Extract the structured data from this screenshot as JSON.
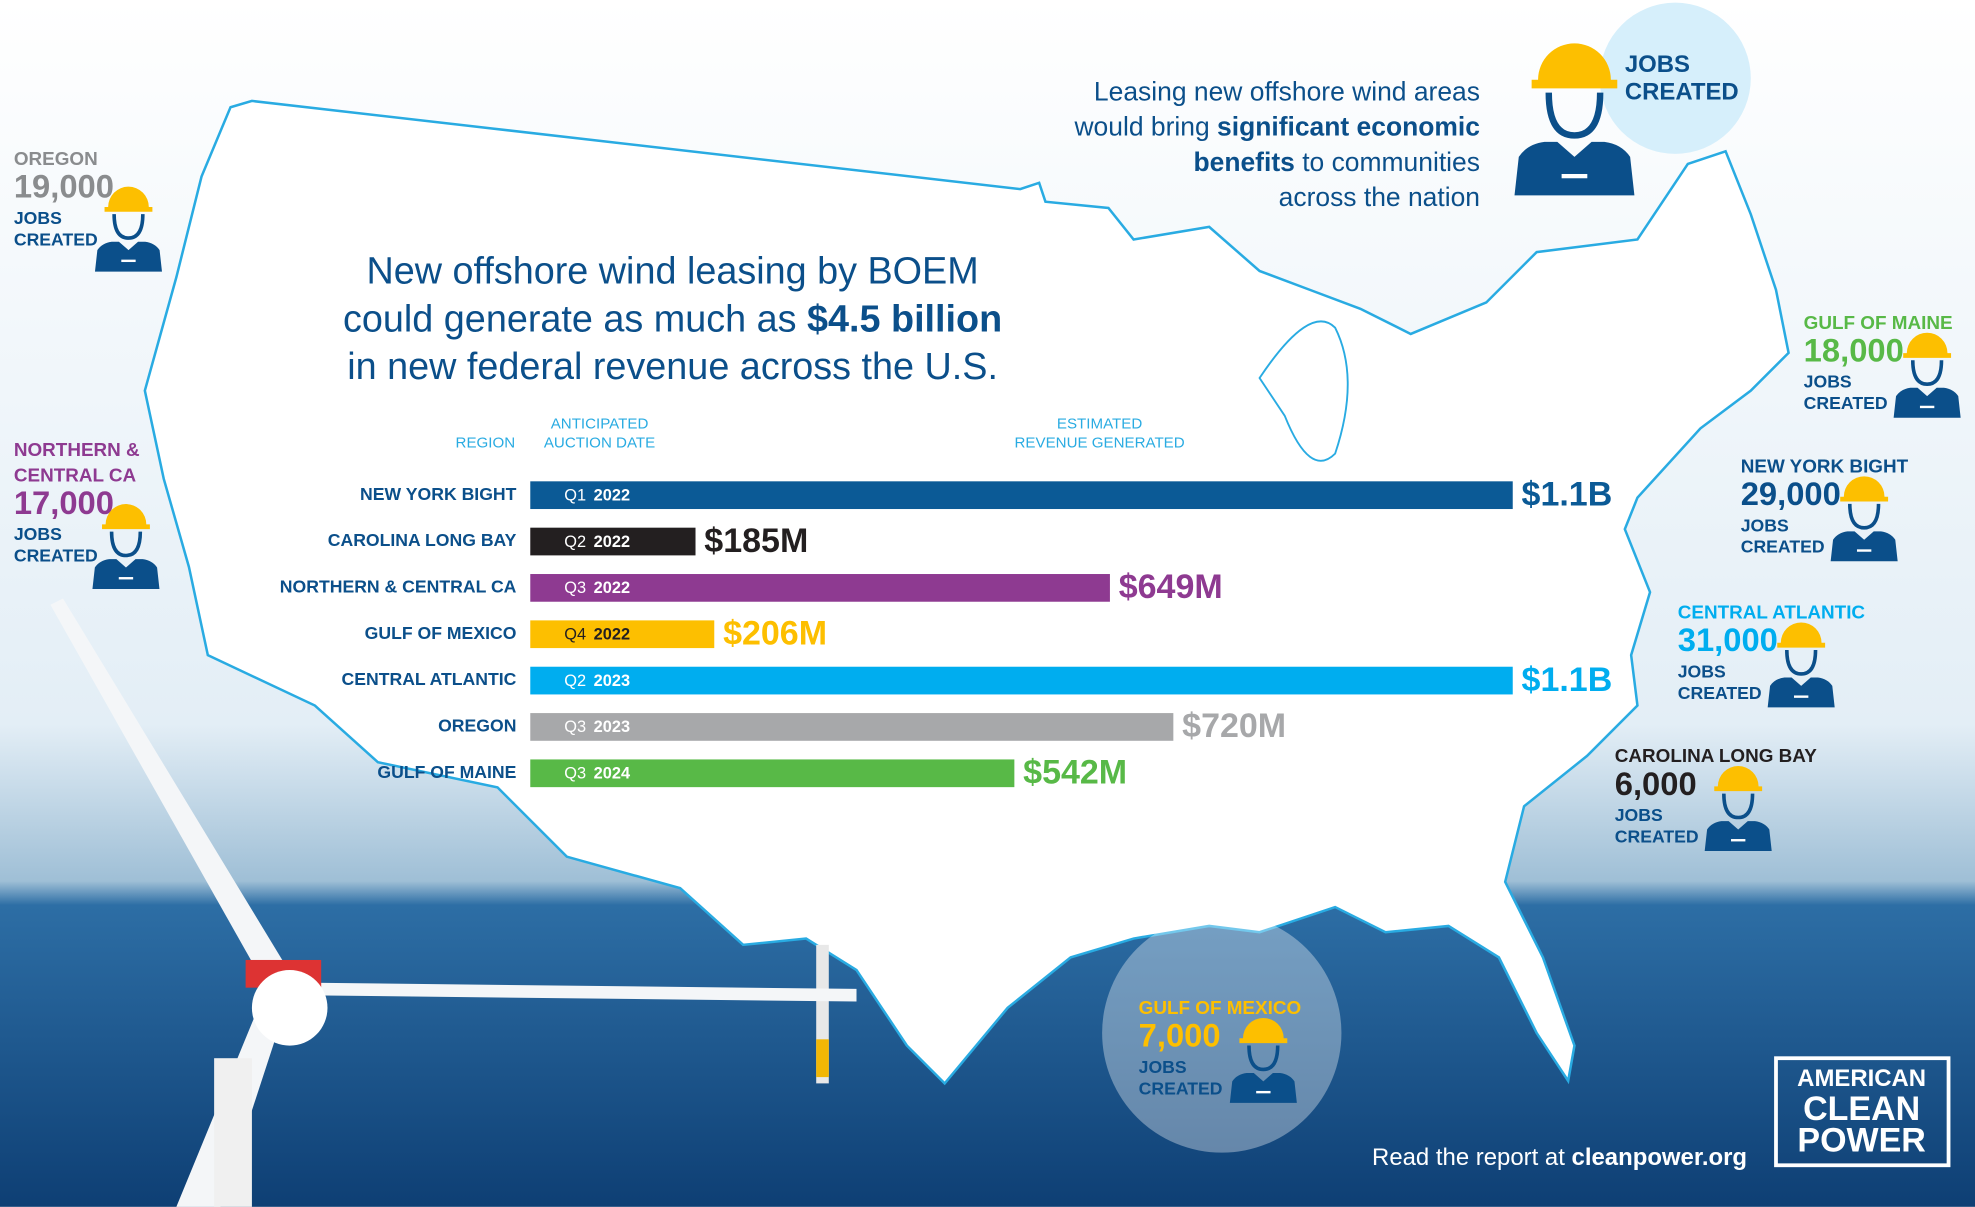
{
  "header": {
    "title_lines": [
      [
        {
          "t": "New offshore wind leasing by BOEM"
        }
      ],
      [
        {
          "t": "could generate as much as "
        },
        {
          "t": "$4.5 billion",
          "b": true
        }
      ],
      [
        {
          "t": "in new federal revenue across the U.S."
        }
      ]
    ],
    "intro_lines": [
      [
        {
          "t": "Leasing new offshore wind areas"
        }
      ],
      [
        {
          "t": "would bring "
        },
        {
          "t": "significant economic",
          "b": true
        }
      ],
      [
        {
          "t": "benefits",
          "b": true
        },
        {
          "t": " to communities"
        }
      ],
      [
        {
          "t": "across the nation"
        }
      ]
    ],
    "badge_lines": [
      "JOBS",
      "CREATED"
    ]
  },
  "chart_data": {
    "type": "bar",
    "orientation": "horizontal",
    "column_headers": [
      [
        "REGION"
      ],
      [
        "ANTICIPATED",
        "AUCTION DATE"
      ],
      [
        "ESTIMATED",
        "REVENUE GENERATED"
      ]
    ],
    "categories": [
      "NEW YORK BIGHT",
      "CAROLINA LONG BAY",
      "NORTHERN & CENTRAL CA",
      "GULF OF MEXICO",
      "CENTRAL ATLANTIC",
      "OREGON",
      "GULF OF MAINE"
    ],
    "auction_quarters": [
      "Q1",
      "Q2",
      "Q3",
      "Q4",
      "Q2",
      "Q3",
      "Q3"
    ],
    "auction_years": [
      "2022",
      "2022",
      "2022",
      "2022",
      "2023",
      "2023",
      "2024"
    ],
    "values": [
      1100000000,
      185000000,
      649000000,
      206000000,
      1100000000,
      720000000,
      542000000
    ],
    "value_labels": [
      "$1.1B",
      "$185M",
      "$649M",
      "$206M",
      "$1.1B",
      "$720M",
      "$542M"
    ],
    "colors": [
      "#0b5a96",
      "#231f20",
      "#8e3a91",
      "#fdbf00",
      "#00adef",
      "#a7a8aa",
      "#58b947"
    ]
  },
  "jobs_callouts": [
    {
      "region_lines": [
        "OREGON"
      ],
      "jobs": "19,000",
      "label_lines": [
        "JOBS",
        "CREATED"
      ],
      "color": "#8a8c8e"
    },
    {
      "region_lines": [
        "NORTHERN &",
        "CENTRAL CA"
      ],
      "jobs": "17,000",
      "label_lines": [
        "JOBS",
        "CREATED"
      ],
      "color": "#8e3a91"
    },
    {
      "region_lines": [
        "GULF OF MAINE"
      ],
      "jobs": "18,000",
      "label_lines": [
        "JOBS",
        "CREATED"
      ],
      "color": "#58b947"
    },
    {
      "region_lines": [
        "NEW YORK BIGHT"
      ],
      "jobs": "29,000",
      "label_lines": [
        "JOBS",
        "CREATED"
      ],
      "color": "#0b4f8a"
    },
    {
      "region_lines": [
        "CENTRAL ATLANTIC"
      ],
      "jobs": "31,000",
      "label_lines": [
        "JOBS",
        "CREATED"
      ],
      "color": "#00adef"
    },
    {
      "region_lines": [
        "CAROLINA LONG BAY"
      ],
      "jobs": "6,000",
      "label_lines": [
        "JOBS",
        "CREATED"
      ],
      "color": "#231f20"
    },
    {
      "region_lines": [
        "GULF OF MEXICO"
      ],
      "jobs": "7,000",
      "label_lines": [
        "JOBS",
        "CREATED"
      ],
      "color": "#fdbf00"
    }
  ],
  "footer": {
    "link_lines": [
      {
        "t": "Read the report at "
      },
      {
        "t": "cleanpower.org",
        "b": true
      }
    ],
    "logo_lines": [
      "AMERICAN",
      "CLEAN",
      "POWER"
    ]
  }
}
